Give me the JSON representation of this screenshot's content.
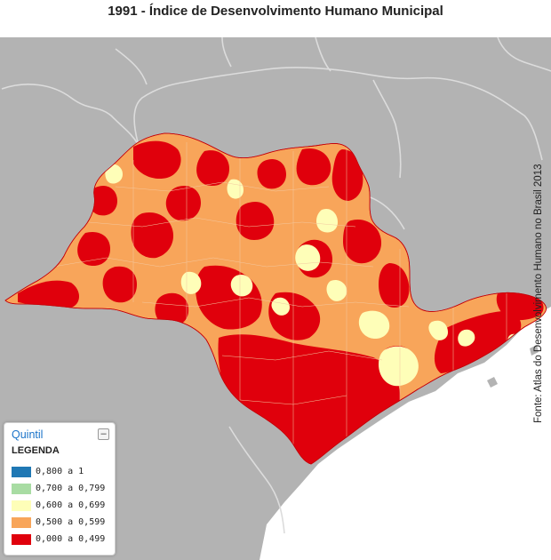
{
  "title": "1991 - Índice de Desenvolvimento Humano Municipal",
  "source": "Fonte: Atlas do Desenvolvimento Humano no Brasil 2013",
  "legend": {
    "title": "Quintil",
    "minimize_label": "–",
    "subtitle": "LEGENDA",
    "items": [
      {
        "label": "0,800 a 1",
        "color": "#1f78b4"
      },
      {
        "label": "0,700 a 0,799",
        "color": "#a8dca3"
      },
      {
        "label": "0,600 a 0,699",
        "color": "#fefeb8"
      },
      {
        "label": "0,500 a 0,599",
        "color": "#f8a55a"
      },
      {
        "label": "0,000 a 0,499",
        "color": "#e0000c"
      }
    ]
  },
  "colors": {
    "land": "#b3b3b3",
    "ocean": "#ffffff",
    "state_border": "#dcdcdc",
    "municipal_border": "#e8b8b8"
  }
}
